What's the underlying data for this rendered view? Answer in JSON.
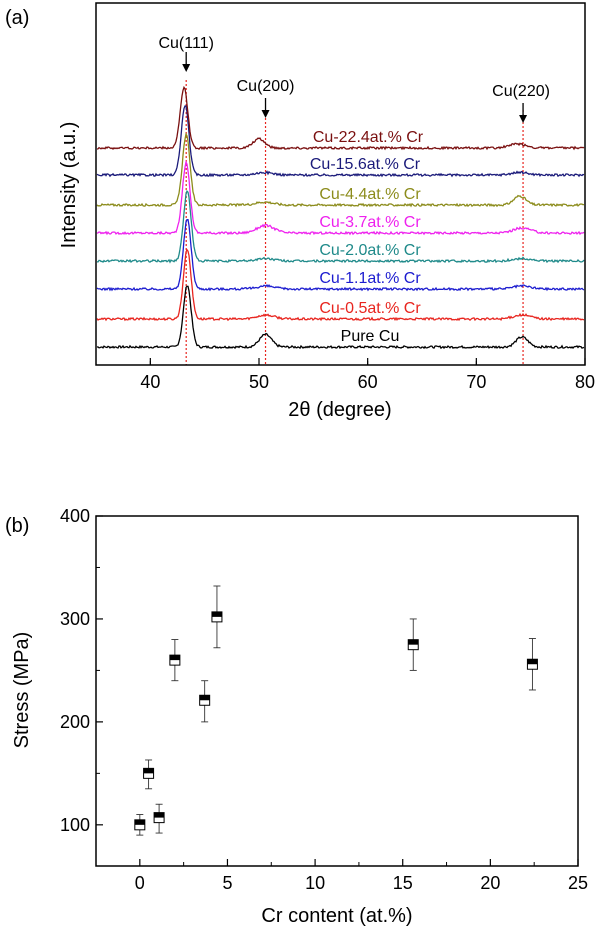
{
  "chart_data": [
    {
      "panel_label": "(a)",
      "type": "line",
      "xlabel": "2θ (degree)",
      "ylabel": "Intensity (a.u.)",
      "xlim": [
        35,
        80
      ],
      "xticks": [
        40,
        50,
        60,
        70,
        80
      ],
      "peak_labels": [
        {
          "label": "Cu(111)",
          "x": 43.3
        },
        {
          "label": "Cu(200)",
          "x": 50.6
        },
        {
          "label": "Cu(220)",
          "x": 74.3
        }
      ],
      "series": [
        {
          "name": "Pure Cu",
          "color": "#000000",
          "peaks": [
            {
              "x": 43.4,
              "height": 10
            },
            {
              "x": 50.6,
              "height": 2.5
            },
            {
              "x": 74.2,
              "height": 2
            }
          ]
        },
        {
          "name": "Cu-0.5at.% Cr",
          "color": "#e8251f",
          "peaks": [
            {
              "x": 43.4,
              "height": 10
            },
            {
              "x": 50.6,
              "height": 0.8
            },
            {
              "x": 74.2,
              "height": 0.8
            }
          ]
        },
        {
          "name": "Cu-1.1at.% Cr",
          "color": "#1c1ccf",
          "peaks": [
            {
              "x": 43.4,
              "height": 10
            },
            {
              "x": 50.6,
              "height": 0.6
            },
            {
              "x": 74.2,
              "height": 0.6
            }
          ]
        },
        {
          "name": "Cu-2.0at.% Cr",
          "color": "#1f8a8a",
          "peaks": [
            {
              "x": 43.4,
              "height": 10
            },
            {
              "x": 50.6,
              "height": 0.5
            },
            {
              "x": 74.2,
              "height": 0.5
            }
          ]
        },
        {
          "name": "Cu-3.7at.% Cr",
          "color": "#ee22ee",
          "peaks": [
            {
              "x": 43.3,
              "height": 10
            },
            {
              "x": 50.6,
              "height": 1.5
            },
            {
              "x": 74.2,
              "height": 1
            }
          ]
        },
        {
          "name": "Cu-4.4at.% Cr",
          "color": "#8c8c1c",
          "peaks": [
            {
              "x": 43.3,
              "height": 10
            },
            {
              "x": 50.5,
              "height": 0.6
            },
            {
              "x": 74.0,
              "height": 1.8
            }
          ]
        },
        {
          "name": "Cu-15.6at.% Cr",
          "color": "#1a1a7a",
          "peaks": [
            {
              "x": 43.2,
              "height": 10
            },
            {
              "x": 50.5,
              "height": 0.5
            },
            {
              "x": 74.0,
              "height": 0.5
            }
          ]
        },
        {
          "name": "Cu-22.4at.% Cr",
          "color": "#7a1010",
          "peaks": [
            {
              "x": 43.1,
              "height": 9
            },
            {
              "x": 50.0,
              "height": 1.8
            },
            {
              "x": 73.8,
              "height": 0.8
            }
          ]
        }
      ]
    },
    {
      "panel_label": "(b)",
      "type": "scatter",
      "xlabel": "Cr content (at.%)",
      "ylabel": "Stress (MPa)",
      "xlim": [
        -2.5,
        25
      ],
      "ylim": [
        60,
        400
      ],
      "xticks": [
        0,
        5,
        10,
        15,
        20,
        25
      ],
      "yticks": [
        100,
        200,
        300,
        400
      ],
      "points": [
        {
          "x": 0,
          "y": 100,
          "err_low": 90,
          "err_high": 110
        },
        {
          "x": 0.5,
          "y": 150,
          "err_low": 135,
          "err_high": 163
        },
        {
          "x": 1.1,
          "y": 107,
          "err_low": 92,
          "err_high": 120
        },
        {
          "x": 2.0,
          "y": 260,
          "err_low": 240,
          "err_high": 280
        },
        {
          "x": 3.7,
          "y": 221,
          "err_low": 200,
          "err_high": 240
        },
        {
          "x": 4.4,
          "y": 302,
          "err_low": 272,
          "err_high": 332
        },
        {
          "x": 15.6,
          "y": 275,
          "err_low": 250,
          "err_high": 300
        },
        {
          "x": 22.4,
          "y": 256,
          "err_low": 231,
          "err_high": 281
        }
      ]
    }
  ]
}
